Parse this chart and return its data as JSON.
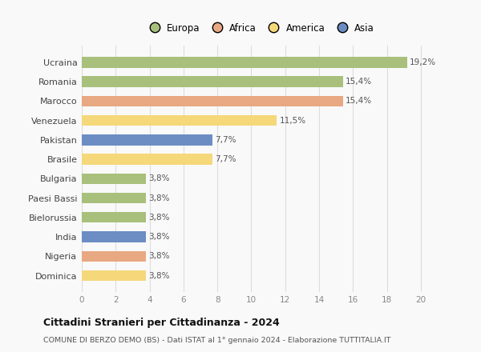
{
  "categories": [
    "Ucraina",
    "Romania",
    "Marocco",
    "Venezuela",
    "Pakistan",
    "Brasile",
    "Bulgaria",
    "Paesi Bassi",
    "Bielorussia",
    "India",
    "Nigeria",
    "Dominica"
  ],
  "values": [
    19.2,
    15.4,
    15.4,
    11.5,
    7.7,
    7.7,
    3.8,
    3.8,
    3.8,
    3.8,
    3.8,
    3.8
  ],
  "labels": [
    "19,2%",
    "15,4%",
    "15,4%",
    "11,5%",
    "7,7%",
    "7,7%",
    "3,8%",
    "3,8%",
    "3,8%",
    "3,8%",
    "3,8%",
    "3,8%"
  ],
  "continents": [
    "Europa",
    "Europa",
    "Africa",
    "America",
    "Asia",
    "America",
    "Europa",
    "Europa",
    "Europa",
    "Asia",
    "Africa",
    "America"
  ],
  "colors": {
    "Europa": "#a8c07c",
    "Africa": "#e8a882",
    "America": "#f5d87a",
    "Asia": "#6b8dc4"
  },
  "legend_order": [
    "Europa",
    "Africa",
    "America",
    "Asia"
  ],
  "xlim": [
    0,
    21
  ],
  "xticks": [
    0,
    2,
    4,
    6,
    8,
    10,
    12,
    14,
    16,
    18,
    20
  ],
  "title": "Cittadini Stranieri per Cittadinanza - 2024",
  "subtitle": "COMUNE DI BERZO DEMO (BS) - Dati ISTAT al 1° gennaio 2024 - Elaborazione TUTTITALIA.IT",
  "bg_color": "#f9f9f9",
  "grid_color": "#dddddd",
  "bar_height": 0.55
}
